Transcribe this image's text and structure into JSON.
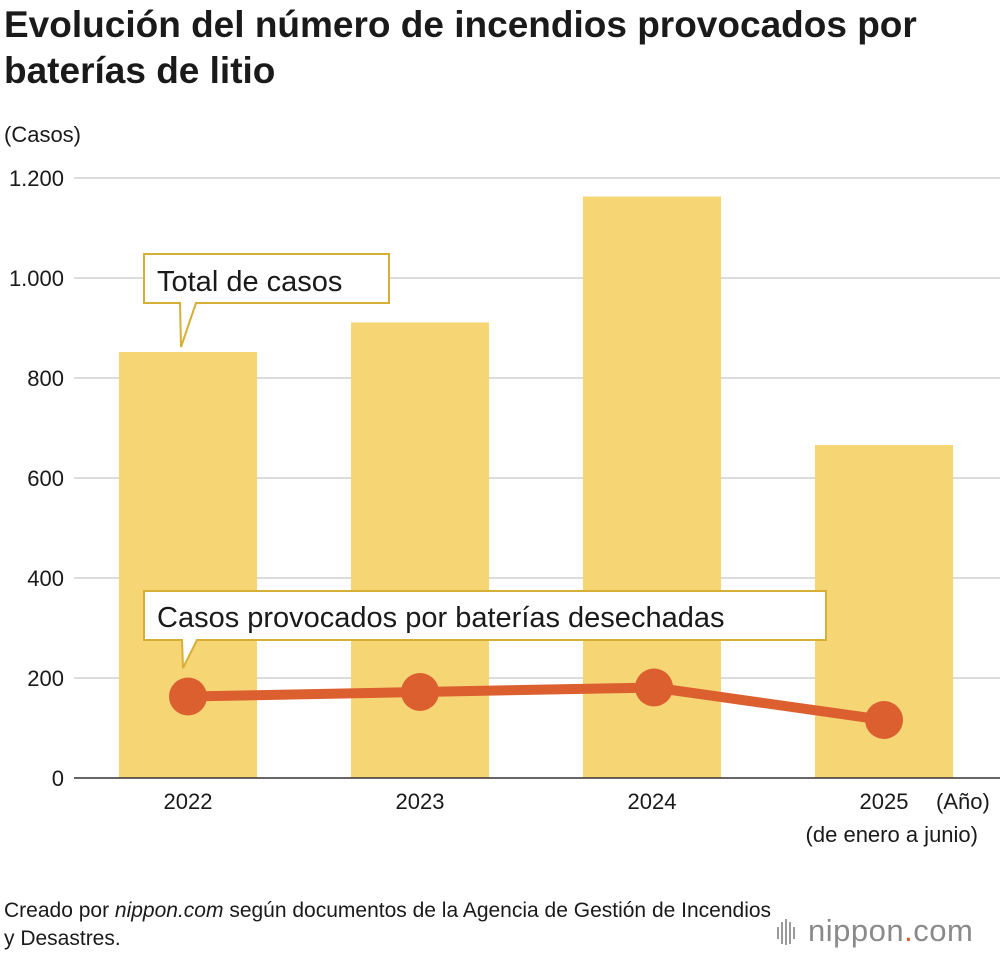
{
  "title": "Evolución del número de incendios provocados por baterías de litio",
  "chart_data": {
    "type": "bar+line",
    "title": "Evolución del número de incendios provocados por baterías de litio",
    "ylabel": "(Casos)",
    "xlabel": "(Año)",
    "ylim": [
      0,
      1200
    ],
    "yticks": [
      0,
      200,
      400,
      600,
      800,
      1000,
      1200
    ],
    "ytick_labels": [
      "0",
      "200",
      "400",
      "600",
      "800",
      "1.000",
      "1.200"
    ],
    "grid": true,
    "categories": [
      "2022",
      "2023",
      "2024",
      "2025"
    ],
    "category_note": "(de enero a junio)",
    "series": [
      {
        "name": "Total de casos",
        "type": "bar",
        "values": [
          852,
          911,
          1163,
          666
        ]
      },
      {
        "name": "Casos provocados por baterías desechadas",
        "type": "line",
        "values": [
          163,
          172,
          181,
          116
        ]
      }
    ]
  },
  "colors": {
    "bar": "#f5d574",
    "line": "#dc5f2f",
    "grid": "#c8c8c8",
    "axis": "#333333",
    "callout_border": "#d6b035"
  },
  "footer": {
    "prefix": "Creado por ",
    "source_site": "nippon.com",
    "suffix": " según documentos de la Agencia de Gestión de Incendios y Desastres."
  },
  "logo": {
    "name": "nippon",
    "dot": ".",
    "tld": "com"
  }
}
